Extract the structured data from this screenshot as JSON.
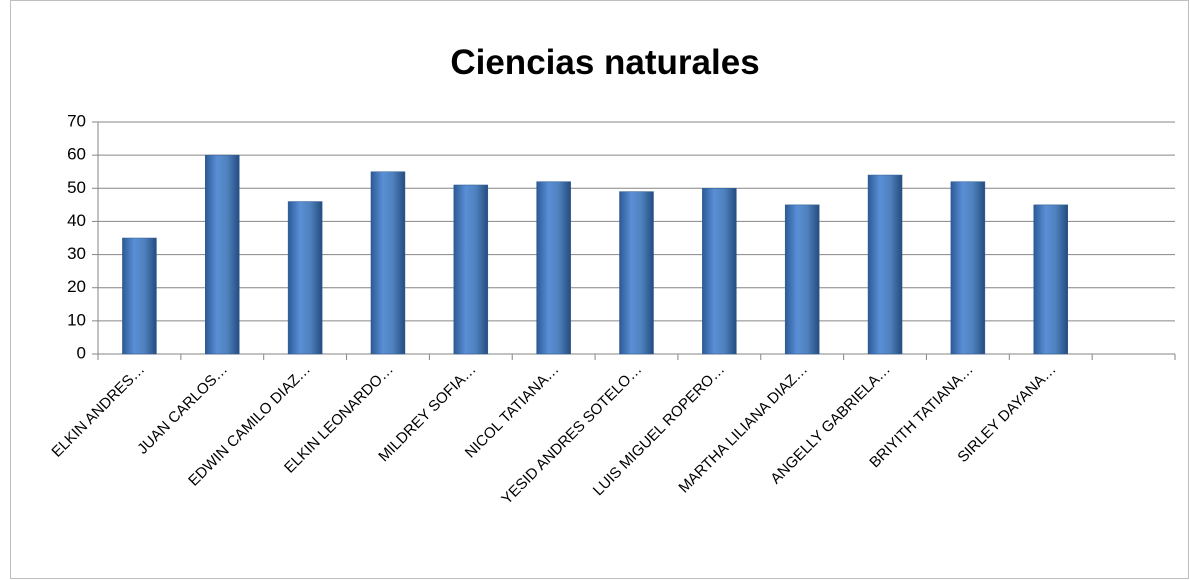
{
  "chart_data": {
    "type": "bar",
    "title": "Ciencias naturales",
    "categories": [
      "ELKIN ANDRES…",
      "JUAN CARLOS…",
      "EDWIN CAMILO DIAZ…",
      "ELKIN LEONARDO…",
      "MILDREY SOFIA…",
      "NICOL TATIANA…",
      "YESID ANDRES SOTELO…",
      "LUIS MIGUEL ROPERO…",
      "MARTHA LILIANA DIAZ…",
      "ANGELLY GABRIELA…",
      "BRIYITH TATIANA…",
      "SIRLEY DAYANA…",
      null
    ],
    "values": [
      35,
      60,
      46,
      55,
      51,
      52,
      49,
      50,
      45,
      54,
      52,
      45,
      null
    ],
    "color": "#4f81bd",
    "ylim": [
      0,
      70
    ],
    "yticks": [
      0,
      10,
      20,
      30,
      40,
      50,
      60,
      70
    ],
    "grid": true
  }
}
